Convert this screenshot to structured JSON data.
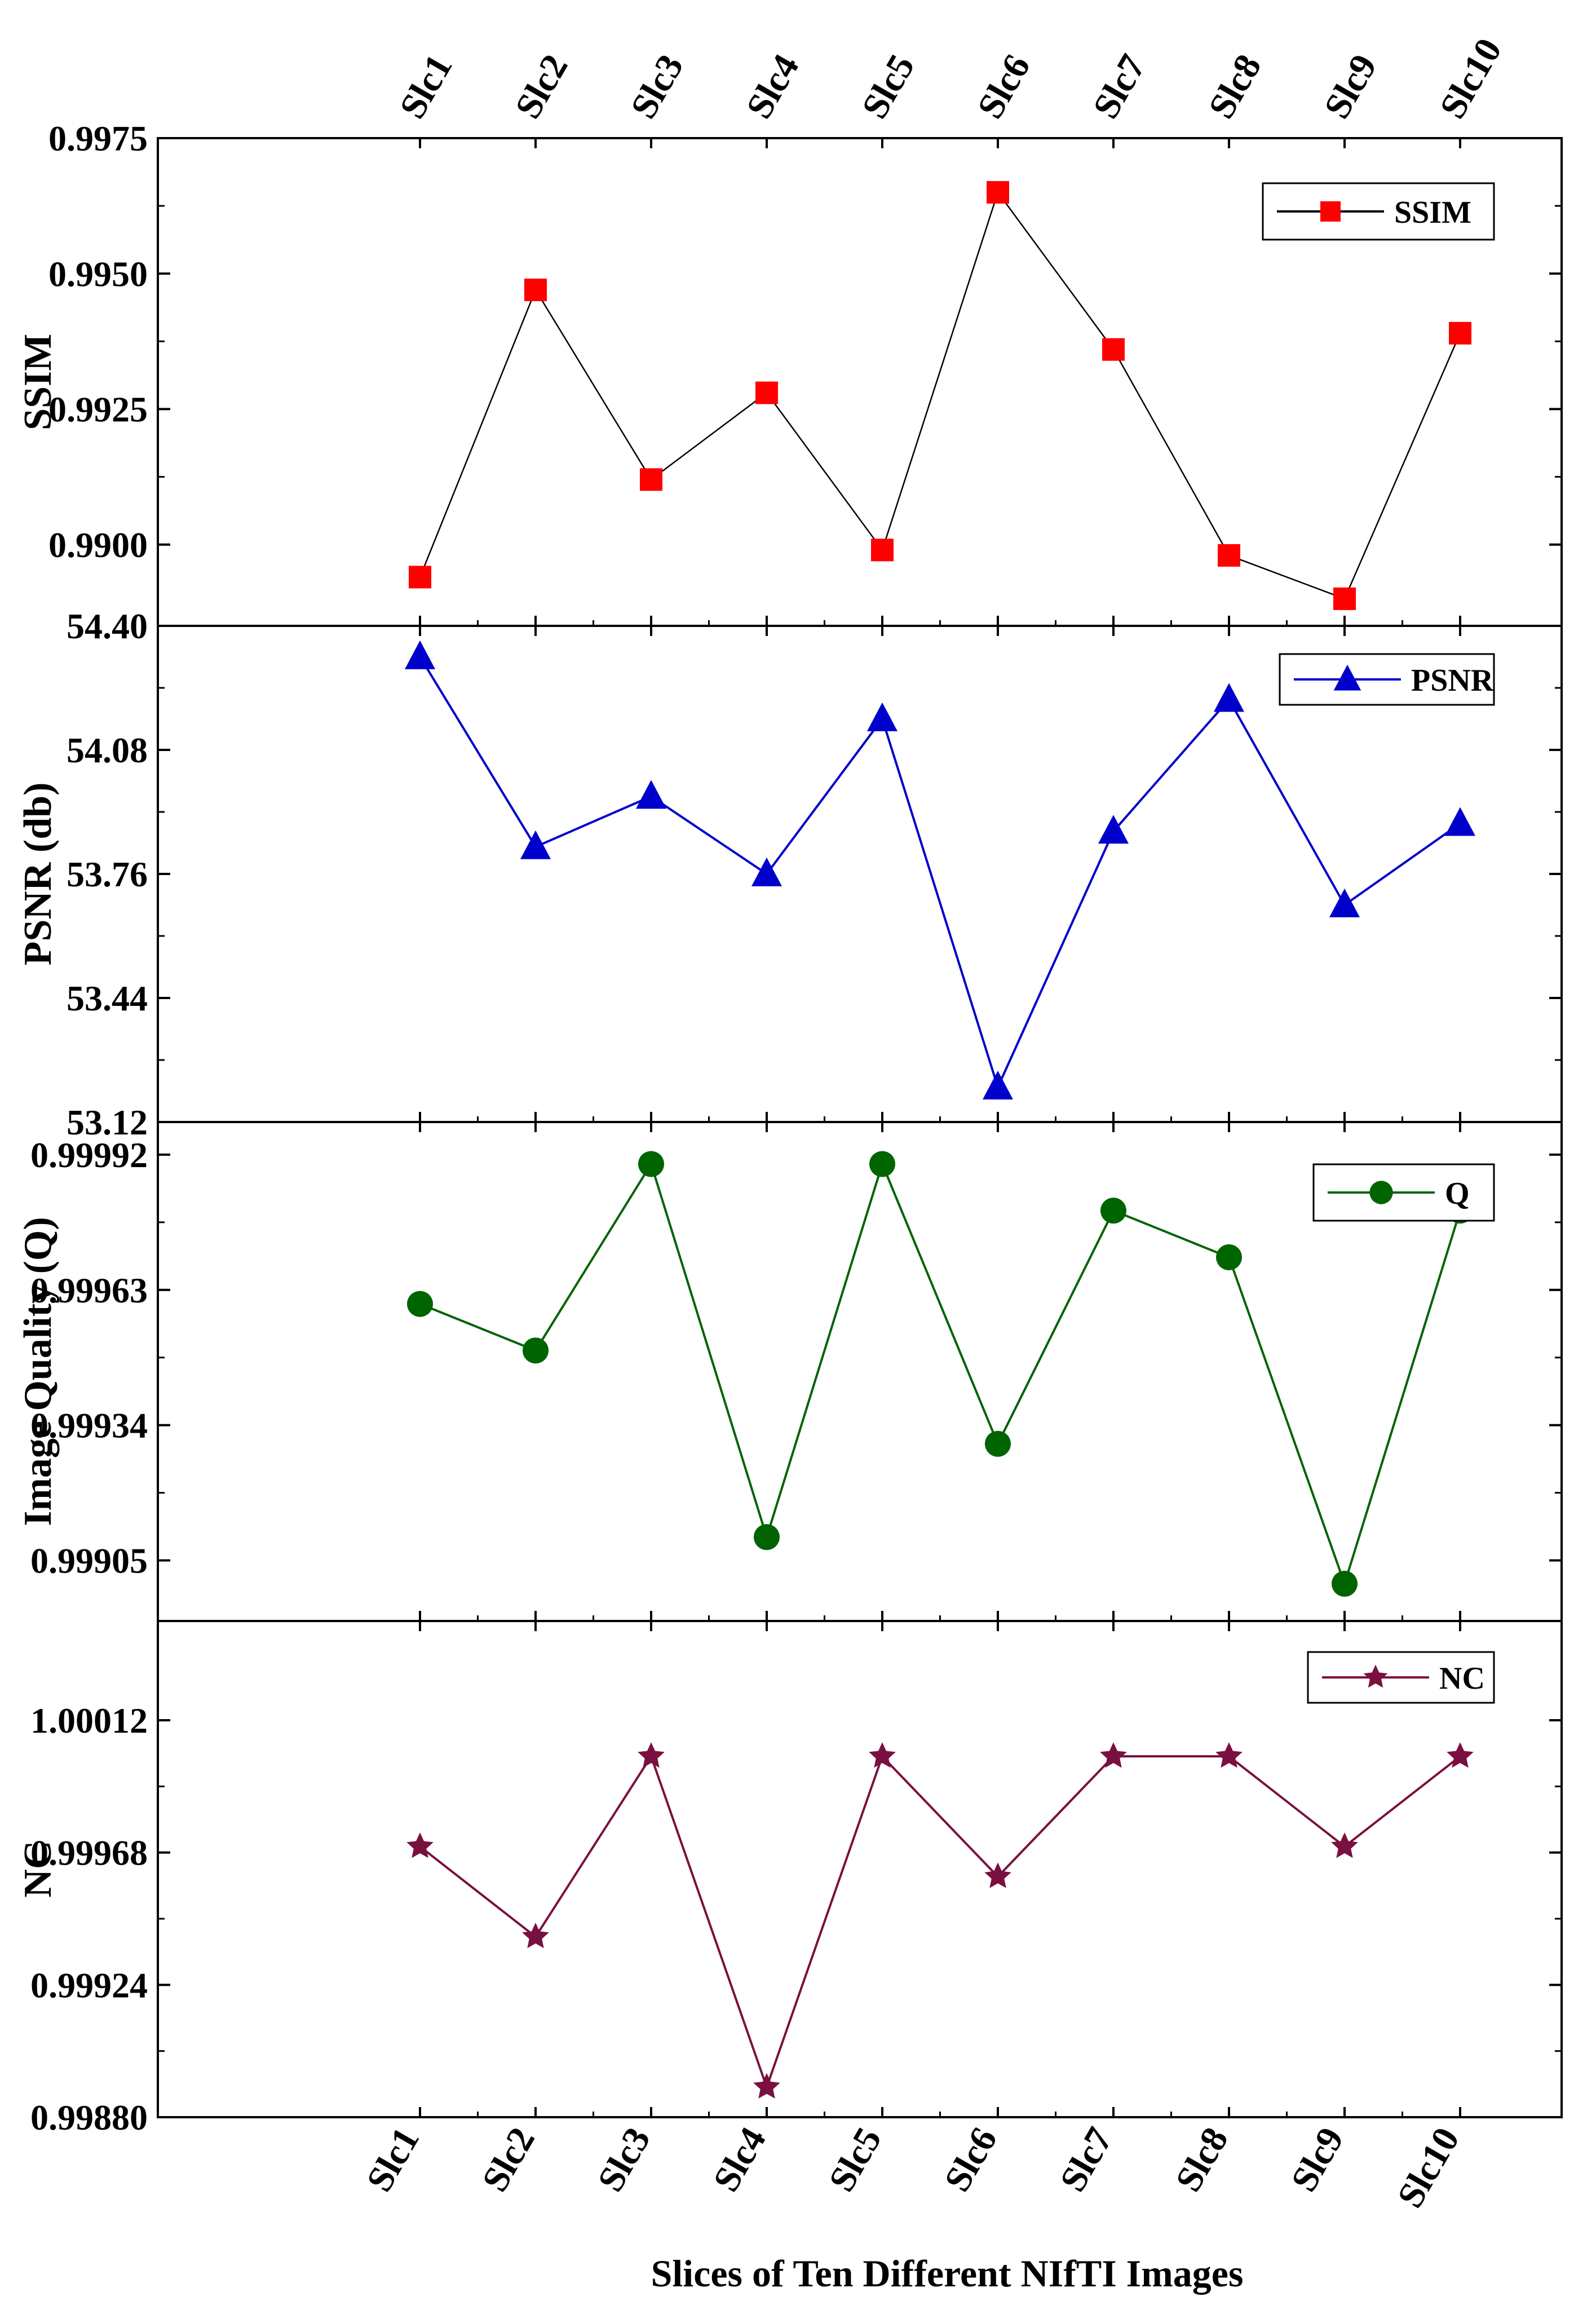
{
  "chart_data": {
    "type": "line",
    "layout": "stacked-panels",
    "categories": [
      "Slc1",
      "Slc2",
      "Slc3",
      "Slc4",
      "Slc5",
      "Slc6",
      "Slc7",
      "Slc8",
      "Slc9",
      "Slc10"
    ],
    "xlabel": "Slices of Ten Different NIfTI Images",
    "panels": [
      {
        "id": "ssim",
        "ylabel": "SSIM",
        "ylim": [
          0.9885,
          0.9975
        ],
        "yticks": [
          0.99,
          0.9925,
          0.995,
          0.9975
        ],
        "ytick_labels": [
          "0.9900",
          "0.9925",
          "0.9950",
          "0.9975"
        ],
        "series": [
          {
            "name": "SSIM",
            "color": "#ff0000",
            "line_color": "#000000",
            "marker": "square",
            "values": [
              0.9894,
              0.9947,
              0.9912,
              0.9928,
              0.9899,
              0.9965,
              0.9936,
              0.9898,
              0.989,
              0.9939
            ]
          }
        ],
        "legend": "top-right"
      },
      {
        "id": "psnr",
        "ylabel": "PSNR (db)",
        "ylim": [
          53.12,
          54.4
        ],
        "yticks": [
          53.12,
          53.44,
          53.76,
          54.08,
          54.4
        ],
        "ytick_labels": [
          "53.12",
          "53.44",
          "53.76",
          "54.08",
          "54.40"
        ],
        "series": [
          {
            "name": "PSNR",
            "color": "#0000cc",
            "line_color": "#0000cc",
            "marker": "triangle",
            "values": [
              54.32,
              53.83,
              53.96,
              53.76,
              54.16,
              53.21,
              53.87,
              54.21,
              53.68,
              53.89
            ]
          }
        ],
        "legend": "top-right"
      },
      {
        "id": "q",
        "ylabel": "Image Quality (Q)",
        "ylim": [
          0.99892,
          0.99999
        ],
        "yticks": [
          0.99905,
          0.99934,
          0.99963,
          0.99992
        ],
        "ytick_labels": [
          "0.99905",
          "0.99934",
          "0.99963",
          "0.99992"
        ],
        "series": [
          {
            "name": "Q",
            "color": "#006400",
            "line_color": "#006400",
            "marker": "circle",
            "values": [
              0.9996,
              0.9995,
              0.9999,
              0.9991,
              0.9999,
              0.9993,
              0.9998,
              0.9997,
              0.999,
              0.9998
            ]
          }
        ],
        "legend": "top-right"
      },
      {
        "id": "nc",
        "ylabel": "NC",
        "ylim": [
          0.9988,
          1.00045
        ],
        "yticks": [
          0.9988,
          0.99924,
          0.99968,
          1.00012
        ],
        "ytick_labels": [
          "0.99880",
          "0.99924",
          "0.99968",
          "1.00012"
        ],
        "series": [
          {
            "name": "NC",
            "color": "#7a1040",
            "line_color": "#7a1040",
            "marker": "star",
            "values": [
              0.9997,
              0.9994,
              1.0,
              0.9989,
              1.0,
              0.9996,
              1.0,
              1.0,
              0.9997,
              1.0
            ]
          }
        ],
        "legend": "top-right"
      }
    ]
  }
}
